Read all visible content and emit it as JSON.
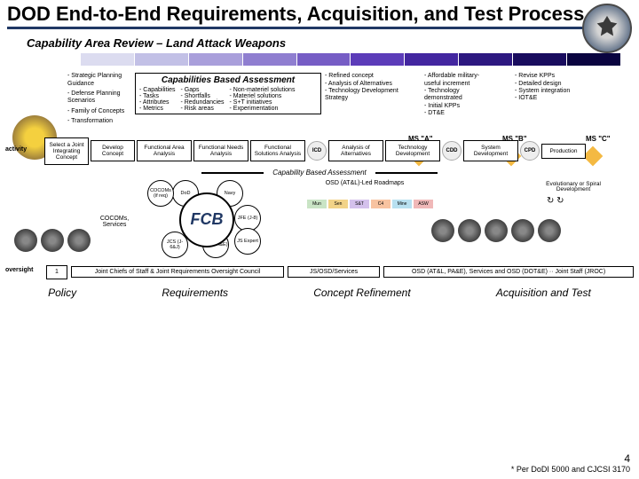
{
  "header": {
    "title": "DOD End-to-End Requirements, Acquisition, and Test Process",
    "seal_tooltip": "Department of Defense"
  },
  "subtitle": "Capability Area Review – Land Attack Weapons",
  "gradient_colors": [
    "#ffffff",
    "#dcdcf0",
    "#c2c0e6",
    "#a99fdb",
    "#8f7ed0",
    "#765dc5",
    "#5c3cb9",
    "#4326a0",
    "#2d1880",
    "#190c5e",
    "#0a0440"
  ],
  "left_bullets": [
    "Strategic Planning Guidance",
    "Defense Planning Scenarios",
    "Family of Concepts",
    "Transformation"
  ],
  "cba": {
    "title": "Capabilities Based Assessment",
    "col1": [
      "Capabilities",
      "Tasks",
      "Attributes",
      "Metrics"
    ],
    "col2": [
      "Gaps",
      "Shortfalls",
      "Redundancies",
      "Risk areas"
    ],
    "col3": [
      "Non-materiel solutions",
      "Materiel solutions",
      "S+T initiatives",
      "Experimentation"
    ]
  },
  "refined": [
    "Refined concept",
    "Analysis of Alternatives",
    "Technology Development Strategy"
  ],
  "ms_a_bullets": [
    "Affordable military-useful increment",
    "Technology demonstrated",
    "Initial KPPs",
    "DT&E"
  ],
  "ms_b_bullets": [
    "Revise KPPs",
    "Detailed design",
    "System integration",
    "IOT&E"
  ],
  "ms_labels": {
    "a": "MS \"A\"",
    "b": "MS \"B\"",
    "c": "MS \"C\""
  },
  "swimlane": {
    "label": "activity",
    "boxes": [
      "Select a Joint Integrating Concept",
      "Develop Concept",
      "Functional Area Analysis",
      "Functional Needs Analysis",
      "Functional Solutions Analysis",
      "ICD",
      "Analysis of Alternatives",
      "Technology Development",
      "CDD",
      "System Development",
      "CPD",
      "Production"
    ]
  },
  "cba_arrow": "Capability Based Assessment",
  "fcb": {
    "label": "FCB",
    "nodes": [
      "DoD",
      "Navy",
      "COCOMs (if req)",
      "JCS (J-6&J)",
      "JFE (J-8)",
      "SN (PA&E)",
      "JS Expert"
    ],
    "side_label": "COCOMs, Services"
  },
  "roadmap": {
    "label": "OSD (AT&L)-Led Roadmaps",
    "boxes": [
      {
        "t": "Mun",
        "c": "#c9e4c5"
      },
      {
        "t": "Sen",
        "c": "#f2d388"
      },
      {
        "t": "S&T",
        "c": "#d4c1ec"
      },
      {
        "t": "C4",
        "c": "#f8c3a0"
      },
      {
        "t": "Mine",
        "c": "#b8e0f0"
      },
      {
        "t": "ASW",
        "c": "#f0b8b8"
      }
    ],
    "evolution": "Evolutionary or Spiral Development"
  },
  "oversight": {
    "label": "oversight",
    "box1": "Joint Chiefs of Staff & Joint Requirements Oversight Council",
    "box2": "JS/OSD/Services",
    "box3": "OSD (AT&L, PA&E), Services and OSD (DOT&E) ·· Joint Staff (JROC)"
  },
  "phases": [
    "Policy",
    "Requirements",
    "Concept Refinement",
    "Acquisition and Test"
  ],
  "footnote": "* Per DoDI 5000 and CJCSI 3170",
  "page_num": "4"
}
